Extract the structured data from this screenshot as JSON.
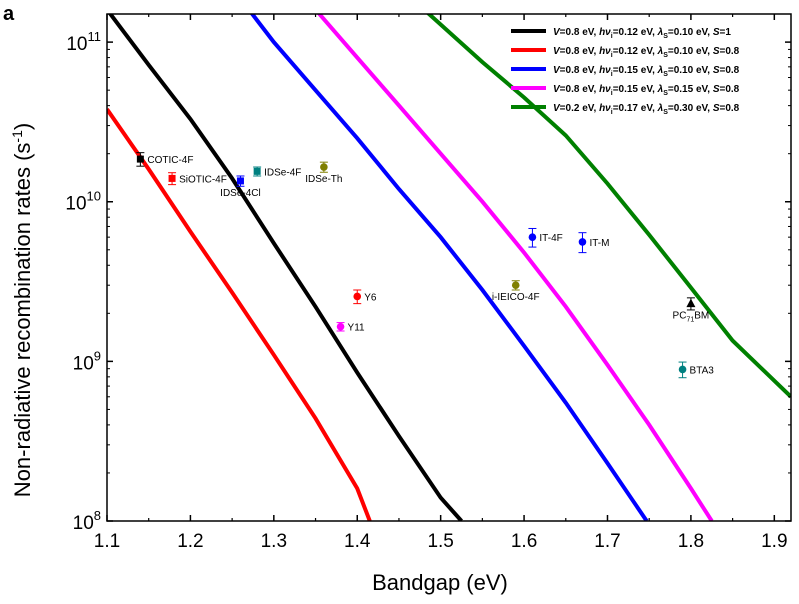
{
  "chart_data": {
    "type": "line",
    "panel_label": "a",
    "xlabel": "Bandgap (eV)",
    "ylabel_main": "Non-radiative recombination rates (s",
    "ylabel_sup": "-1",
    "ylabel_end": ")",
    "xlim": [
      1.1,
      1.92
    ],
    "ylim": [
      100000000,
      150000000000
    ],
    "yscale": "log",
    "x_ticks": [
      1.1,
      1.2,
      1.3,
      1.4,
      1.5,
      1.6,
      1.7,
      1.8,
      1.9
    ],
    "x_tick_labels": [
      "1.1",
      "1.2",
      "1.3",
      "1.4",
      "1.5",
      "1.6",
      "1.7",
      "1.8",
      "1.9"
    ],
    "y_ticks": [
      {
        "value": 100000000,
        "base": "10",
        "exp": "8"
      },
      {
        "value": 1000000000,
        "base": "10",
        "exp": "9"
      },
      {
        "value": 10000000000,
        "base": "10",
        "exp": "10"
      },
      {
        "value": 100000000000,
        "base": "10",
        "exp": "11"
      }
    ],
    "grid": false,
    "legend_position": "top-right",
    "series": [
      {
        "color": "#000000",
        "legend": [
          "V=0.8 eV, ",
          "hν",
          "=0.12 eV, ",
          "λ",
          "S",
          "=0.10 eV, ",
          "S",
          "=1"
        ],
        "x": [
          1.1,
          1.15,
          1.2,
          1.25,
          1.3,
          1.35,
          1.4,
          1.45,
          1.5,
          1.525
        ],
        "y": [
          160000000000,
          72000000000,
          33000000000,
          14000000000,
          5500000000,
          2200000000,
          850000000,
          340000000,
          140000000,
          100000000
        ]
      },
      {
        "color": "#ff0000",
        "legend": [
          "V=0.8 eV, ",
          "hν",
          "=0.12 eV, ",
          "λ",
          "S",
          "=0.10 eV, ",
          "S",
          "=0.8"
        ],
        "x": [
          1.1,
          1.15,
          1.2,
          1.25,
          1.3,
          1.35,
          1.4,
          1.415
        ],
        "y": [
          38000000000,
          16000000000,
          6500000000,
          2700000000,
          1100000000,
          440000000,
          160000000,
          100000000
        ]
      },
      {
        "color": "#0000ff",
        "legend": [
          "V=0.8 eV, ",
          "hν",
          "=0.15 eV, ",
          "λ",
          "S",
          "=0.10 eV, ",
          "S",
          "=0.8"
        ],
        "x": [
          1.27,
          1.3,
          1.35,
          1.4,
          1.45,
          1.5,
          1.55,
          1.6,
          1.65,
          1.7,
          1.747
        ],
        "y": [
          160000000000,
          100000000000,
          50000000000,
          25000000000,
          12000000000,
          6000000000,
          2800000000,
          1250000000,
          550000000,
          230000000,
          100000000
        ]
      },
      {
        "color": "#ff00ff",
        "legend": [
          "V=0.8 eV, ",
          "hν",
          "=0.15 eV, ",
          "λ",
          "S",
          "=0.15 eV, ",
          "S",
          "=0.8"
        ],
        "x": [
          1.35,
          1.4,
          1.45,
          1.5,
          1.55,
          1.6,
          1.65,
          1.7,
          1.75,
          1.8,
          1.825
        ],
        "y": [
          160000000000,
          80000000000,
          40000000000,
          20000000000,
          10000000000,
          4800000000,
          2200000000,
          950000000,
          400000000,
          160000000,
          100000000
        ]
      },
      {
        "color": "#008000",
        "legend": [
          "V=0.2 eV, ",
          "hν",
          "=0.17 eV, ",
          "λ",
          "S",
          "=0.30 eV, ",
          "S",
          "=0.8"
        ],
        "x": [
          1.48,
          1.55,
          1.6,
          1.65,
          1.7,
          1.75,
          1.8,
          1.85,
          1.92
        ],
        "y": [
          160000000000,
          75000000000,
          45000000000,
          26000000000,
          13000000000,
          6200000000,
          2900000000,
          1350000000,
          600000000
        ]
      }
    ],
    "points": [
      {
        "label": "COTIC-4F",
        "x": 1.14,
        "y": 18500000000,
        "err": 1800000000,
        "color": "#000000",
        "marker": "square",
        "label_pos": "right"
      },
      {
        "label": "SiOTIC-4F",
        "x": 1.178,
        "y": 14000000000,
        "err": 1200000000,
        "color": "#ff0000",
        "marker": "square",
        "label_pos": "right"
      },
      {
        "label": "IDSe-4Cl",
        "x": 1.26,
        "y": 13500000000,
        "err": 1000000000,
        "color": "#0000ff",
        "marker": "square",
        "label_pos": "below"
      },
      {
        "label": "IDSe-4F",
        "x": 1.28,
        "y": 15500000000,
        "err": 1000000000,
        "color": "#008080",
        "marker": "square",
        "label_pos": "right"
      },
      {
        "label": "IDSe-Th",
        "x": 1.36,
        "y": 16500000000,
        "err": 1200000000,
        "color": "#808000",
        "marker": "circle",
        "label_pos": "below"
      },
      {
        "label": "Y6",
        "x": 1.4,
        "y": 2550000000,
        "err": 250000000,
        "color": "#ff0000",
        "marker": "circle",
        "label_pos": "right"
      },
      {
        "label": "Y11",
        "x": 1.38,
        "y": 1650000000,
        "err": 100000000,
        "color": "#ff00ff",
        "marker": "circle",
        "label_pos": "right"
      },
      {
        "label": "IT-4F",
        "x": 1.61,
        "y": 6000000000,
        "err": 800000000,
        "color": "#0000ff",
        "marker": "circle",
        "label_pos": "right"
      },
      {
        "label": "IT-M",
        "x": 1.67,
        "y": 5600000000,
        "err": 800000000,
        "color": "#0000ff",
        "marker": "circle",
        "label_pos": "right"
      },
      {
        "label": "i-IEICO-4F",
        "x": 1.59,
        "y": 3000000000,
        "err": 200000000,
        "color": "#808000",
        "marker": "circle",
        "label_pos": "below"
      },
      {
        "label": "BTA3",
        "x": 1.79,
        "y": 890000000,
        "err": 100000000,
        "color": "#008080",
        "marker": "circle",
        "label_pos": "right"
      },
      {
        "label": "PC71BM",
        "label_main": "PC",
        "label_sub": "71",
        "label_end": "BM",
        "x": 1.8,
        "y": 2300000000,
        "err": 200000000,
        "color": "#000000",
        "marker": "triangle",
        "label_pos": "below"
      }
    ]
  }
}
